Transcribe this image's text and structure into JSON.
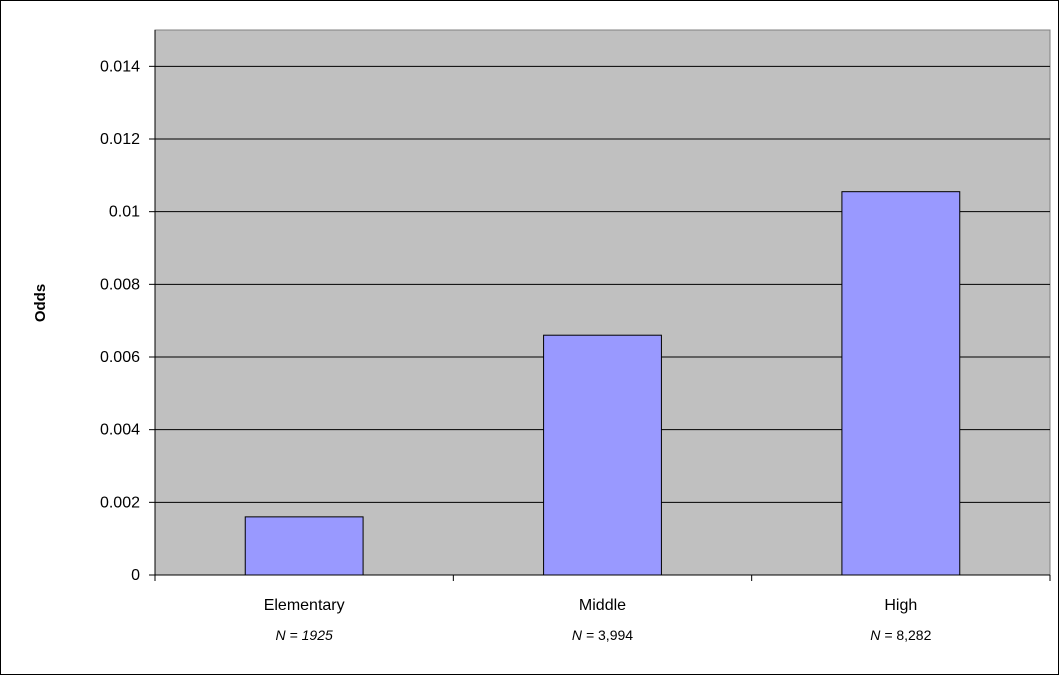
{
  "chart_data": {
    "type": "bar",
    "categories": [
      "Elementary",
      "Middle",
      "High"
    ],
    "category_notes": [
      {
        "prefix": "N",
        "rest": " = ",
        "value": "1925",
        "value_italic": true
      },
      {
        "prefix": "N",
        "rest": " = ",
        "value": "3,994",
        "value_italic": false
      },
      {
        "prefix": "N",
        "rest": " = ",
        "value": "8,282",
        "value_italic": false
      }
    ],
    "values": [
      0.0016,
      0.0066,
      0.01055
    ],
    "ylabel": "Odds",
    "xlabel": "",
    "title": "",
    "ylim": [
      0,
      0.015
    ],
    "yticks": [
      "0",
      "0.002",
      "0.004",
      "0.006",
      "0.008",
      "0.01",
      "0.012",
      "0.014"
    ],
    "grid": true,
    "legend": "none",
    "colors": {
      "plot_background": "#c0c0c0",
      "bar_fill": "#9999ff",
      "bar_stroke": "#000000",
      "gridline": "#000000"
    }
  }
}
